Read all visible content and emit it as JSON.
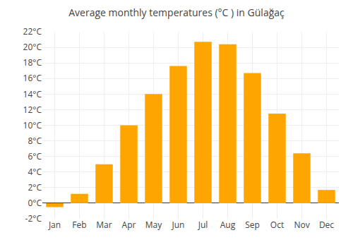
{
  "chart_data": {
    "type": "bar",
    "title": "Average monthly temperatures (°C ) in Gülаğaç",
    "categories": [
      "Jan",
      "Feb",
      "Mar",
      "Apr",
      "May",
      "Jun",
      "Jul",
      "Aug",
      "Sep",
      "Oct",
      "Nov",
      "Dec"
    ],
    "values": [
      -0.5,
      1.2,
      5.0,
      10.0,
      14.0,
      17.6,
      20.7,
      20.4,
      16.7,
      11.5,
      6.4,
      1.7
    ],
    "color": "#FFA500",
    "ylim": [
      -2,
      22
    ],
    "yticks": [
      {
        "value": -2,
        "label": "-2°C"
      },
      {
        "value": 0,
        "label": "0°C"
      },
      {
        "value": 2,
        "label": "2°C"
      },
      {
        "value": 4,
        "label": "4°C"
      },
      {
        "value": 6,
        "label": "6°C"
      },
      {
        "value": 8,
        "label": "8°C"
      },
      {
        "value": 10,
        "label": "10°C"
      },
      {
        "value": 12,
        "label": "12°C"
      },
      {
        "value": 14,
        "label": "14°C"
      },
      {
        "value": 16,
        "label": "16°C"
      },
      {
        "value": 18,
        "label": "18°C"
      },
      {
        "value": 20,
        "label": "20°C"
      },
      {
        "value": 22,
        "label": "22°C"
      }
    ],
    "grid": true
  }
}
